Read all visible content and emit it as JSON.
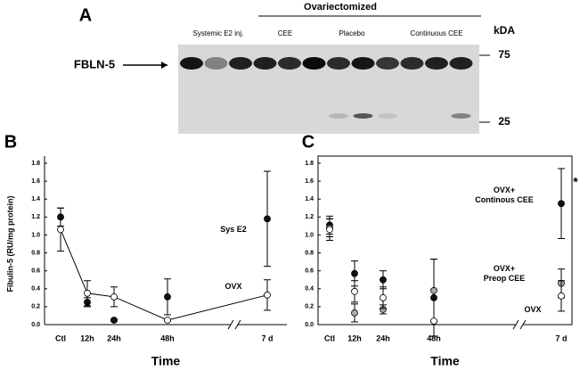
{
  "panel_a": {
    "letter": "A",
    "group_title": "Ovariectomized",
    "unit": "kDA",
    "band_label": "FBLN-5",
    "markers": [
      "75",
      "25"
    ],
    "groups": [
      "Systemic E2 inj.",
      "CEE",
      "Placebo",
      "Continuous CEE"
    ]
  },
  "chart_data": [
    {
      "type": "line",
      "letter": "B",
      "y_label": "Fibulin-5 (RU/mg protein)",
      "x_label": "Time",
      "categories": [
        "Ctl",
        "12h",
        "24h",
        "48h",
        "7 d"
      ],
      "ylim": [
        0,
        1.8
      ],
      "yticks": [
        {
          "value": 0,
          "label": "0.0"
        },
        0.2,
        0.4,
        0.6,
        0.8,
        {
          "value": 1,
          "label": "1.0"
        },
        1.2,
        1.4,
        1.6,
        1.8
      ],
      "series": [
        {
          "name": "Sys E2",
          "color": "#111111",
          "values": [
            1.2,
            0.25,
            0.05,
            0.31,
            1.18
          ],
          "errors": [
            0.1,
            0.05,
            0.01,
            0.2,
            0.53
          ],
          "connect": false
        },
        {
          "name": "OVX",
          "color": "#ffffff",
          "values": [
            1.06,
            0.35,
            0.31,
            0.05,
            0.33
          ],
          "errors": [
            0.24,
            0.14,
            0.11,
            0.01,
            0.17
          ],
          "connect": true
        }
      ]
    },
    {
      "type": "line",
      "letter": "C",
      "x_label": "Time",
      "annotation": "*",
      "categories": [
        "Ctl",
        "12h",
        "24h",
        "48h",
        "7 d"
      ],
      "ylim": [
        0,
        1.8
      ],
      "yticks": [
        {
          "value": 0,
          "label": "0.0"
        },
        0.2,
        0.4,
        0.6,
        0.8,
        {
          "value": 1,
          "label": "1.0"
        },
        1.2,
        1.4,
        1.6,
        1.8
      ],
      "series": [
        {
          "name": "OVX+\nContinous CEE",
          "color": "#111111",
          "values": [
            1.11,
            0.57,
            0.5,
            0.3,
            1.35
          ],
          "errors": [
            0.1,
            0.14,
            0.1,
            0.43,
            0.39
          ],
          "connect": false
        },
        {
          "name": "OVX+\nPreop CEE",
          "color": "#aaaaaa",
          "values": [
            1.08,
            0.13,
            0.17,
            0.38,
            0.46
          ],
          "errors": [
            0.1,
            0.1,
            0.05,
            0.35,
            0.16
          ],
          "connect": false
        },
        {
          "name": "OVX",
          "color": "#ffffff",
          "values": [
            1.06,
            0.37,
            0.3,
            0.04,
            0.32
          ],
          "errors": [
            0.12,
            0.12,
            0.12,
            0.01,
            0.17
          ],
          "connect": false
        }
      ]
    }
  ]
}
